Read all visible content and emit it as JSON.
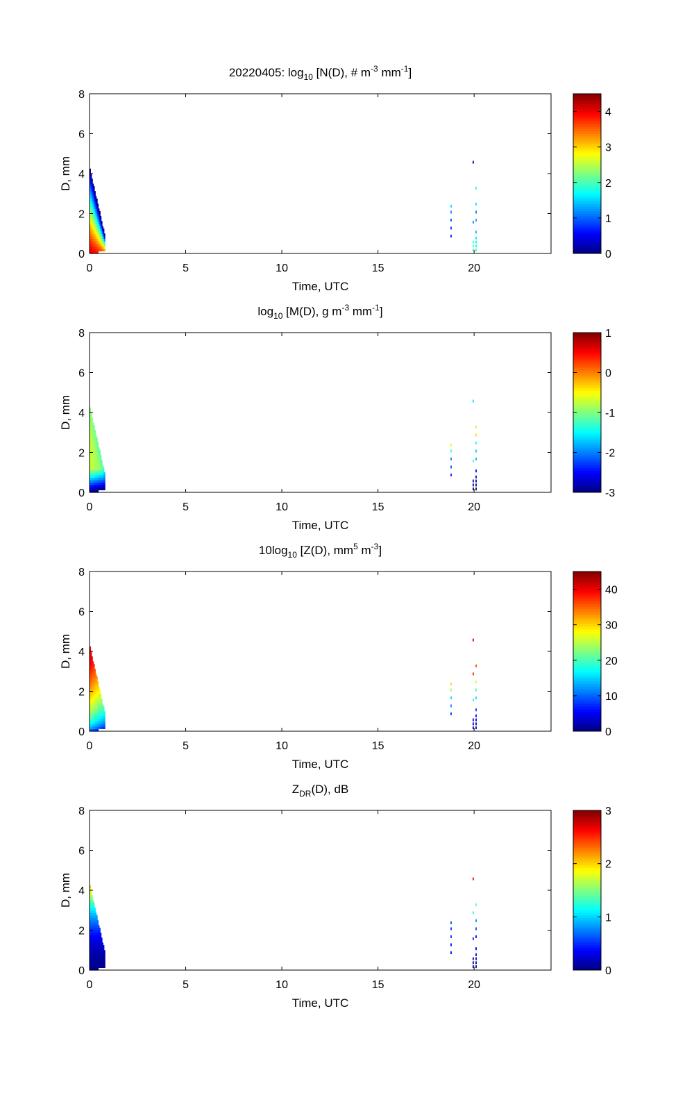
{
  "chart_data": [
    {
      "type": "heatmap",
      "title_parts": [
        {
          "t": "20220405: log"
        },
        {
          "t": "10",
          "s": "sub"
        },
        {
          "t": " [N(D), # m"
        },
        {
          "t": "-3",
          "s": "sup"
        },
        {
          "t": " mm"
        },
        {
          "t": "-1",
          "s": "sup"
        },
        {
          "t": "]"
        }
      ],
      "xlabel": "Time, UTC",
      "ylabel": "D, mm",
      "xlim": [
        0,
        24
      ],
      "ylim": [
        0,
        8
      ],
      "xticks": [
        0,
        5,
        10,
        15,
        20
      ],
      "yticks": [
        0,
        2,
        4,
        6,
        8
      ],
      "colorbar": {
        "range": [
          0,
          4.5
        ],
        "ticks": [
          0,
          1,
          2,
          3,
          4
        ]
      },
      "mode": "N",
      "events": [
        {
          "x": 18.8,
          "cells": [
            [
              0.8,
              0.7
            ],
            [
              1.2,
              0.8
            ],
            [
              1.6,
              0.9
            ],
            [
              2.0,
              1.2
            ],
            [
              2.3,
              1.5
            ]
          ]
        },
        {
          "x": 19.95,
          "cells": [
            [
              0.1,
              2.0
            ],
            [
              0.3,
              2.1
            ],
            [
              0.5,
              2.0
            ],
            [
              1.5,
              1.2
            ],
            [
              4.5,
              0.3
            ]
          ]
        },
        {
          "x": 20.1,
          "cells": [
            [
              0.1,
              1.8
            ],
            [
              0.3,
              1.8
            ],
            [
              0.5,
              1.7
            ],
            [
              0.7,
              1.6
            ],
            [
              1.0,
              1.4
            ],
            [
              1.6,
              1.3
            ],
            [
              2.0,
              1.1
            ],
            [
              2.4,
              1.6
            ],
            [
              3.2,
              1.8
            ]
          ]
        }
      ]
    },
    {
      "type": "heatmap",
      "title_parts": [
        {
          "t": "log"
        },
        {
          "t": "10",
          "s": "sub"
        },
        {
          "t": " [M(D), g m"
        },
        {
          "t": "-3",
          "s": "sup"
        },
        {
          "t": " mm"
        },
        {
          "t": "-1",
          "s": "sup"
        },
        {
          "t": "]"
        }
      ],
      "xlabel": "Time, UTC",
      "ylabel": "D, mm",
      "xlim": [
        0,
        24
      ],
      "ylim": [
        0,
        8
      ],
      "xticks": [
        0,
        5,
        10,
        15,
        20
      ],
      "yticks": [
        0,
        2,
        4,
        6,
        8
      ],
      "colorbar": {
        "range": [
          -3,
          1
        ],
        "ticks": [
          -3,
          -2,
          -1,
          0,
          1
        ]
      },
      "mode": "M",
      "events": [
        {
          "x": 18.8,
          "cells": [
            [
              0.8,
              -2.4
            ],
            [
              1.2,
              -2.2
            ],
            [
              1.6,
              -2.0
            ],
            [
              2.0,
              -1.3
            ],
            [
              2.3,
              -0.6
            ]
          ]
        },
        {
          "x": 19.95,
          "cells": [
            [
              0.1,
              -3.0
            ],
            [
              0.3,
              -2.9
            ],
            [
              0.5,
              -2.8
            ],
            [
              1.5,
              -1.2
            ],
            [
              4.5,
              -1.6
            ]
          ]
        },
        {
          "x": 20.1,
          "cells": [
            [
              0.1,
              -3.0
            ],
            [
              0.3,
              -2.9
            ],
            [
              0.5,
              -2.9
            ],
            [
              0.7,
              -2.8
            ],
            [
              1.0,
              -2.5
            ],
            [
              1.6,
              -1.8
            ],
            [
              2.0,
              -1.7
            ],
            [
              2.4,
              -1.4
            ],
            [
              2.8,
              -0.4
            ],
            [
              3.2,
              -0.7
            ]
          ]
        }
      ]
    },
    {
      "type": "heatmap",
      "title_parts": [
        {
          "t": "10log"
        },
        {
          "t": "10",
          "s": "sub"
        },
        {
          "t": " [Z(D),  mm"
        },
        {
          "t": "5",
          "s": "sup"
        },
        {
          "t": " m"
        },
        {
          "t": "-3",
          "s": "sup"
        },
        {
          "t": "]"
        }
      ],
      "xlabel": "Time, UTC",
      "ylabel": "D, mm",
      "xlim": [
        0,
        24
      ],
      "ylim": [
        0,
        8
      ],
      "xticks": [
        0,
        5,
        10,
        15,
        20
      ],
      "yticks": [
        0,
        2,
        4,
        6,
        8
      ],
      "colorbar": {
        "range": [
          0,
          45
        ],
        "ticks": [
          0,
          10,
          20,
          30,
          40
        ]
      },
      "mode": "Z",
      "events": [
        {
          "x": 18.8,
          "cells": [
            [
              0.8,
              8
            ],
            [
              1.2,
              12
            ],
            [
              1.6,
              15
            ],
            [
              2.0,
              24
            ],
            [
              2.3,
              30
            ]
          ]
        },
        {
          "x": 19.95,
          "cells": [
            [
              0.1,
              2
            ],
            [
              0.3,
              3
            ],
            [
              0.5,
              5
            ],
            [
              1.5,
              18
            ],
            [
              2.8,
              38
            ],
            [
              4.5,
              42
            ]
          ]
        },
        {
          "x": 20.1,
          "cells": [
            [
              0.1,
              2
            ],
            [
              0.3,
              3
            ],
            [
              0.5,
              4
            ],
            [
              0.7,
              6
            ],
            [
              1.0,
              8
            ],
            [
              1.6,
              16
            ],
            [
              2.0,
              20
            ],
            [
              2.4,
              26
            ],
            [
              3.2,
              36
            ]
          ]
        }
      ]
    },
    {
      "type": "heatmap",
      "title_parts": [
        {
          "t": "Z"
        },
        {
          "t": "DR",
          "s": "sub"
        },
        {
          "t": "(D), dB"
        }
      ],
      "xlabel": "Time, UTC",
      "ylabel": "D, mm",
      "xlim": [
        0,
        24
      ],
      "ylim": [
        0,
        8
      ],
      "xticks": [
        0,
        5,
        10,
        15,
        20
      ],
      "yticks": [
        0,
        2,
        4,
        6,
        8
      ],
      "colorbar": {
        "range": [
          0,
          3
        ],
        "ticks": [
          0,
          1,
          2,
          3
        ]
      },
      "mode": "ZDR",
      "events": [
        {
          "x": 18.8,
          "cells": [
            [
              0.8,
              0.3
            ],
            [
              1.2,
              0.4
            ],
            [
              1.6,
              0.5
            ],
            [
              2.0,
              0.5
            ],
            [
              2.3,
              0.6
            ]
          ]
        },
        {
          "x": 19.95,
          "cells": [
            [
              0.1,
              0.1
            ],
            [
              0.3,
              0.1
            ],
            [
              0.5,
              0.15
            ],
            [
              1.5,
              0.5
            ],
            [
              2.8,
              1.2
            ],
            [
              4.5,
              2.6
            ]
          ]
        },
        {
          "x": 20.1,
          "cells": [
            [
              0.1,
              0.1
            ],
            [
              0.3,
              0.1
            ],
            [
              0.5,
              0.15
            ],
            [
              0.7,
              0.2
            ],
            [
              1.0,
              0.3
            ],
            [
              1.6,
              0.4
            ],
            [
              2.0,
              0.6
            ],
            [
              2.4,
              0.8
            ],
            [
              3.2,
              1.4
            ]
          ]
        }
      ]
    }
  ]
}
